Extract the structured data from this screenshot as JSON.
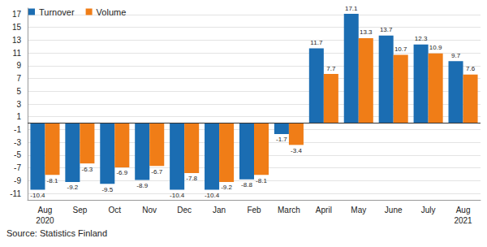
{
  "chart_data": {
    "type": "bar",
    "categories": [
      "Aug\n2020",
      "Sep",
      "Oct",
      "Nov",
      "Dec",
      "Jan",
      "Feb",
      "March",
      "April",
      "May",
      "June",
      "July",
      "Aug\n2021"
    ],
    "series": [
      {
        "name": "Turnover",
        "color": "#1b6db2",
        "values": [
          -10.4,
          -9.2,
          -9.5,
          -8.9,
          -10.4,
          -10.4,
          -8.8,
          -1.7,
          11.7,
          17.1,
          13.7,
          12.3,
          9.7
        ]
      },
      {
        "name": "Volume",
        "color": "#f07d17",
        "values": [
          -8.1,
          -6.3,
          -6.9,
          -6.7,
          -7.8,
          -9.2,
          -8.1,
          -3.4,
          7.7,
          13.3,
          10.7,
          10.9,
          7.6
        ]
      }
    ],
    "ylim": [
      -12,
      18
    ],
    "yticks": [
      -11,
      -9,
      -7,
      -5,
      -3,
      -1,
      1,
      3,
      5,
      7,
      9,
      11,
      13,
      15,
      17
    ],
    "grid": true,
    "legend": "top-left",
    "data_labels": true,
    "source": "Source: Statistics Finland"
  }
}
